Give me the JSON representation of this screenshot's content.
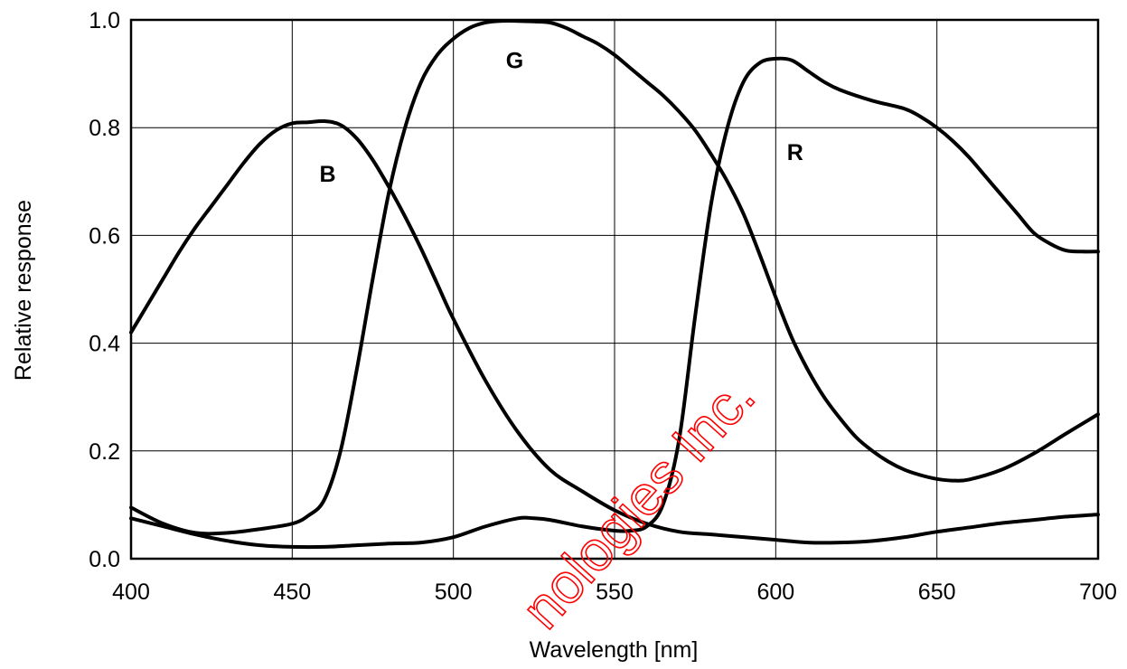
{
  "chart_data": {
    "type": "line",
    "title": "",
    "xlabel": "Wavelength [nm]",
    "ylabel": "Relative response",
    "xlim": [
      400,
      700
    ],
    "ylim": [
      0.0,
      1.0
    ],
    "xticks": [
      400,
      450,
      500,
      550,
      600,
      650,
      700
    ],
    "xtick_labels": [
      "400",
      "450",
      "500",
      "550",
      "600",
      "650",
      "700"
    ],
    "yticks": [
      0.0,
      0.2,
      0.4,
      0.6,
      0.8,
      1.0
    ],
    "ytick_labels": [
      "0.0",
      "0.2",
      "0.4",
      "0.6",
      "0.8",
      "1.0"
    ],
    "grid": true,
    "legend": "none",
    "colors": {
      "line": "#000000",
      "grid": "#000000",
      "watermark": "#ff0000"
    },
    "series": [
      {
        "name": "B",
        "x": [
          400,
          405,
          410,
          415,
          420,
          425,
          430,
          435,
          440,
          445,
          450,
          455,
          460,
          465,
          470,
          475,
          480,
          485,
          490,
          495,
          500,
          510,
          520,
          530,
          540,
          550,
          560,
          570,
          580,
          590,
          600,
          610,
          620,
          630,
          640,
          650,
          660,
          670,
          680,
          690,
          700
        ],
        "y": [
          0.42,
          0.47,
          0.52,
          0.57,
          0.615,
          0.655,
          0.695,
          0.735,
          0.77,
          0.795,
          0.808,
          0.81,
          0.812,
          0.805,
          0.78,
          0.74,
          0.69,
          0.635,
          0.575,
          0.51,
          0.445,
          0.33,
          0.235,
          0.165,
          0.125,
          0.09,
          0.065,
          0.05,
          0.045,
          0.04,
          0.035,
          0.03,
          0.03,
          0.033,
          0.04,
          0.05,
          0.058,
          0.066,
          0.072,
          0.078,
          0.082
        ]
      },
      {
        "name": "G",
        "x": [
          400,
          410,
          420,
          430,
          440,
          450,
          455,
          460,
          465,
          470,
          475,
          480,
          485,
          490,
          495,
          500,
          505,
          510,
          515,
          520,
          525,
          530,
          535,
          540,
          545,
          550,
          555,
          560,
          565,
          570,
          575,
          580,
          585,
          590,
          595,
          600,
          605,
          610,
          615,
          620,
          625,
          630,
          635,
          640,
          645,
          650,
          655,
          660,
          670,
          680,
          690,
          700
        ],
        "y": [
          0.095,
          0.065,
          0.048,
          0.048,
          0.055,
          0.065,
          0.08,
          0.11,
          0.2,
          0.35,
          0.52,
          0.68,
          0.8,
          0.885,
          0.935,
          0.965,
          0.985,
          0.995,
          0.998,
          0.998,
          0.997,
          0.995,
          0.985,
          0.97,
          0.955,
          0.935,
          0.91,
          0.885,
          0.86,
          0.83,
          0.795,
          0.75,
          0.7,
          0.64,
          0.565,
          0.485,
          0.41,
          0.35,
          0.3,
          0.26,
          0.225,
          0.2,
          0.18,
          0.165,
          0.155,
          0.148,
          0.145,
          0.147,
          0.165,
          0.195,
          0.232,
          0.268
        ]
      },
      {
        "name": "R",
        "x": [
          400,
          410,
          420,
          430,
          440,
          450,
          460,
          470,
          480,
          490,
          500,
          510,
          520,
          525,
          530,
          540,
          550,
          555,
          560,
          565,
          570,
          575,
          580,
          585,
          590,
          595,
          600,
          605,
          610,
          615,
          620,
          630,
          640,
          645,
          650,
          655,
          660,
          665,
          670,
          675,
          680,
          685,
          690,
          695,
          700
        ],
        "y": [
          0.075,
          0.06,
          0.045,
          0.033,
          0.025,
          0.022,
          0.022,
          0.025,
          0.028,
          0.03,
          0.04,
          0.06,
          0.075,
          0.075,
          0.072,
          0.06,
          0.052,
          0.052,
          0.06,
          0.1,
          0.22,
          0.45,
          0.66,
          0.8,
          0.885,
          0.92,
          0.928,
          0.925,
          0.905,
          0.885,
          0.87,
          0.85,
          0.835,
          0.82,
          0.8,
          0.775,
          0.745,
          0.71,
          0.675,
          0.64,
          0.605,
          0.585,
          0.572,
          0.57,
          0.57
        ]
      }
    ],
    "annotations": [
      {
        "text": "B",
        "x": 461,
        "y": 0.7
      },
      {
        "text": "G",
        "x": 519,
        "y": 0.91
      },
      {
        "text": "R",
        "x": 606,
        "y": 0.74
      }
    ],
    "watermark": "nologies Inc."
  }
}
